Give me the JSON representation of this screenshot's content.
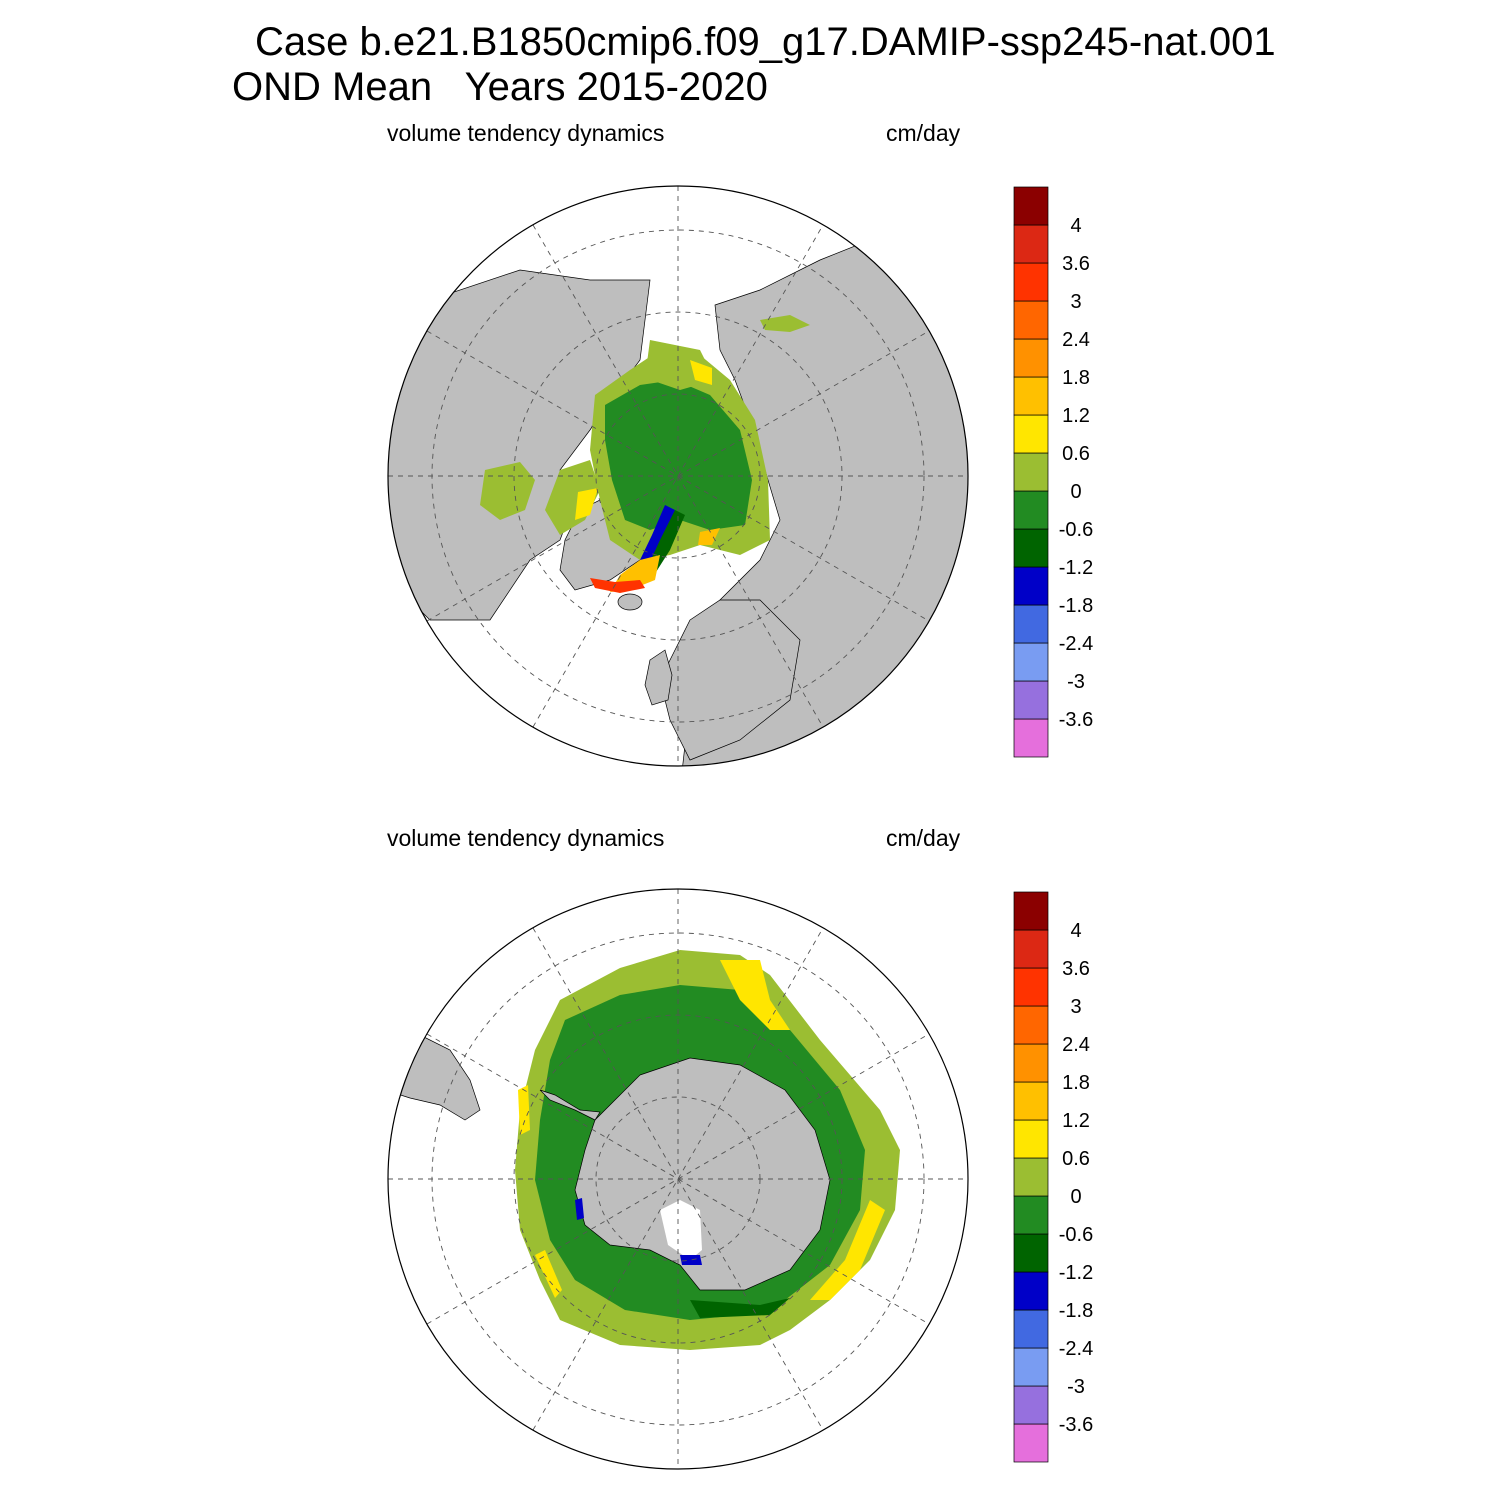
{
  "title": {
    "line1": "Case b.e21.B1850cmip6.f09_g17.DAMIP-ssp245-nat.001",
    "line2": "OND Mean   Years 2015-2020"
  },
  "colors": {
    "land": "#bebebe",
    "levels": [
      "#e56fdc",
      "#9670de",
      "#799cf2",
      "#4169e1",
      "#0000c8",
      "#006400",
      "#228b22",
      "#9bbe32",
      "#ffe600",
      "#ffc000",
      "#ff9100",
      "#ff6600",
      "#ff3300",
      "#dc2814",
      "#8b0000"
    ]
  },
  "panels": [
    {
      "id": "nh",
      "hemisphere": "north",
      "left_label": "volume tendency dynamics",
      "right_label": "cm/day",
      "colorbar_labels": [
        "4",
        "3.6",
        "3",
        "2.4",
        "1.8",
        "1.2",
        "0.6",
        "0",
        "-0.6",
        "-1.2",
        "-1.8",
        "-2.4",
        "-3",
        "-3.6"
      ]
    },
    {
      "id": "sh",
      "hemisphere": "south",
      "left_label": "volume tendency dynamics",
      "right_label": "cm/day",
      "colorbar_labels": [
        "4",
        "3.6",
        "3",
        "2.4",
        "1.8",
        "1.2",
        "0.6",
        "0",
        "-0.6",
        "-1.2",
        "-1.8",
        "-2.4",
        "-3",
        "-3.6"
      ]
    }
  ]
}
